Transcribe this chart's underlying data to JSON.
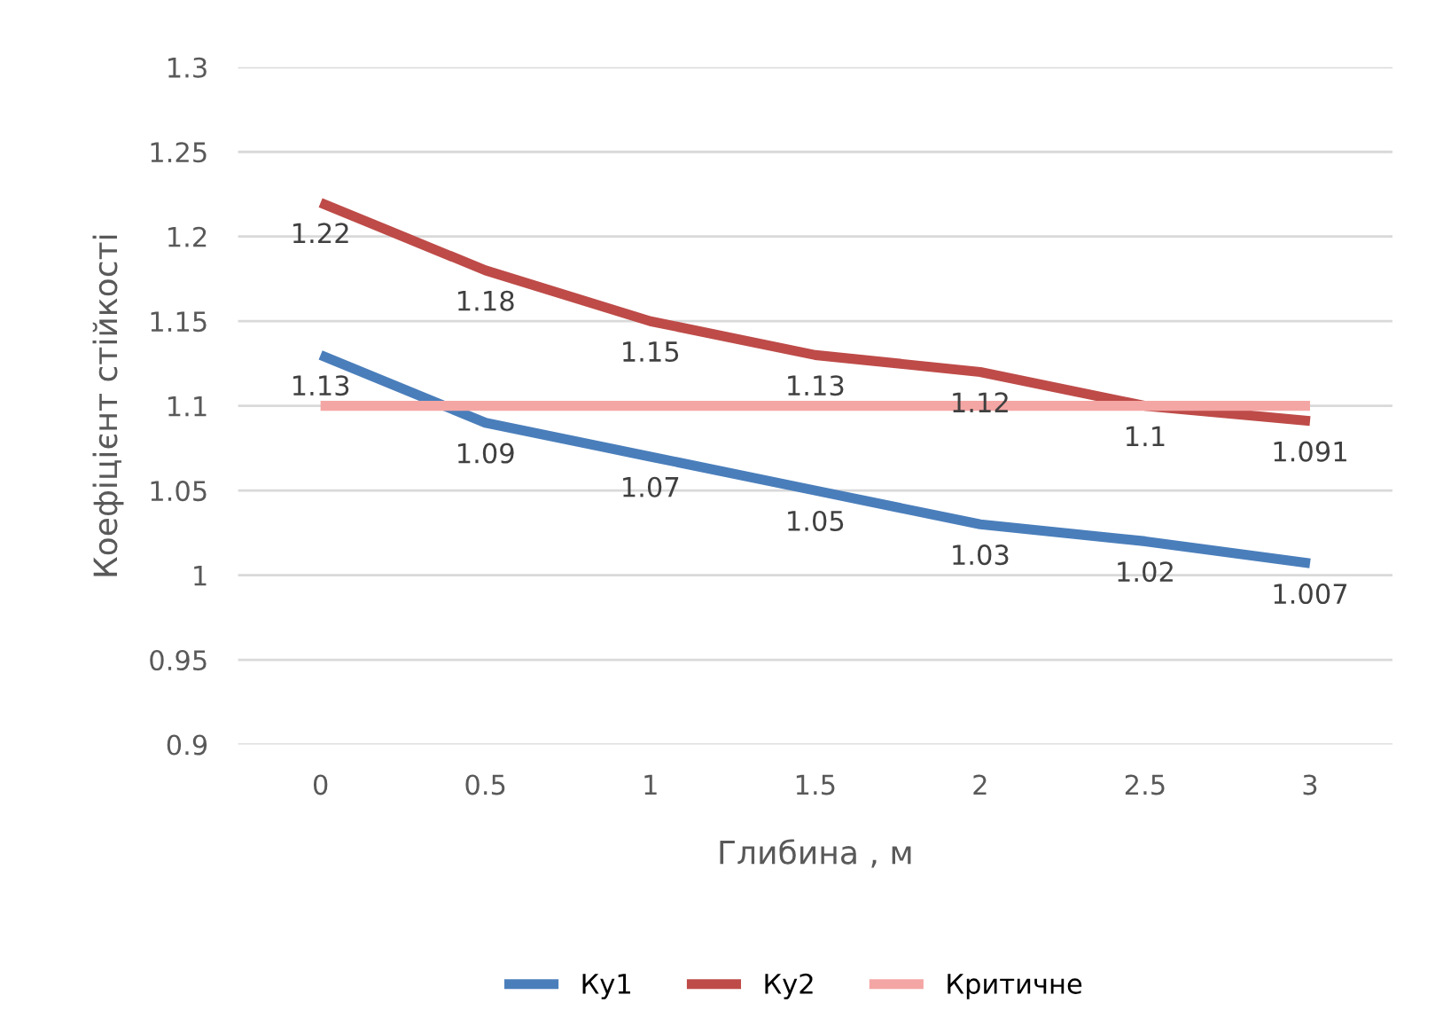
{
  "chart_data": {
    "type": "line",
    "xlabel": "Глибина , м",
    "ylabel": "Коефіцієнт стійкості",
    "categories": [
      "0",
      "0.5",
      "1",
      "1.5",
      "2",
      "2.5",
      "3"
    ],
    "series": [
      {
        "name": "Ку1",
        "color": "#4a7ebb",
        "values": [
          1.13,
          1.09,
          1.07,
          1.05,
          1.03,
          1.02,
          1.007
        ],
        "value_labels": [
          "1.13",
          "1.09",
          "1.07",
          "1.05",
          "1.03",
          "1.02",
          "1.007"
        ]
      },
      {
        "name": "Ку2",
        "color": "#be4b48",
        "values": [
          1.22,
          1.18,
          1.15,
          1.13,
          1.12,
          1.1,
          1.091
        ],
        "value_labels": [
          "1.22",
          "1.18",
          "1.15",
          "1.13",
          "1.12",
          "1.1",
          "1.091"
        ]
      },
      {
        "name": "Критичне",
        "color": "#f4a6a4",
        "values": [
          1.1,
          1.1,
          1.1,
          1.1,
          1.1,
          1.1,
          1.1
        ]
      }
    ],
    "ylim": [
      0.9,
      1.3
    ],
    "yticks": [
      0.9,
      0.95,
      1,
      1.05,
      1.1,
      1.15,
      1.2,
      1.25,
      1.3
    ],
    "grid": "y",
    "legend": "bottom",
    "line_style": "solid"
  }
}
